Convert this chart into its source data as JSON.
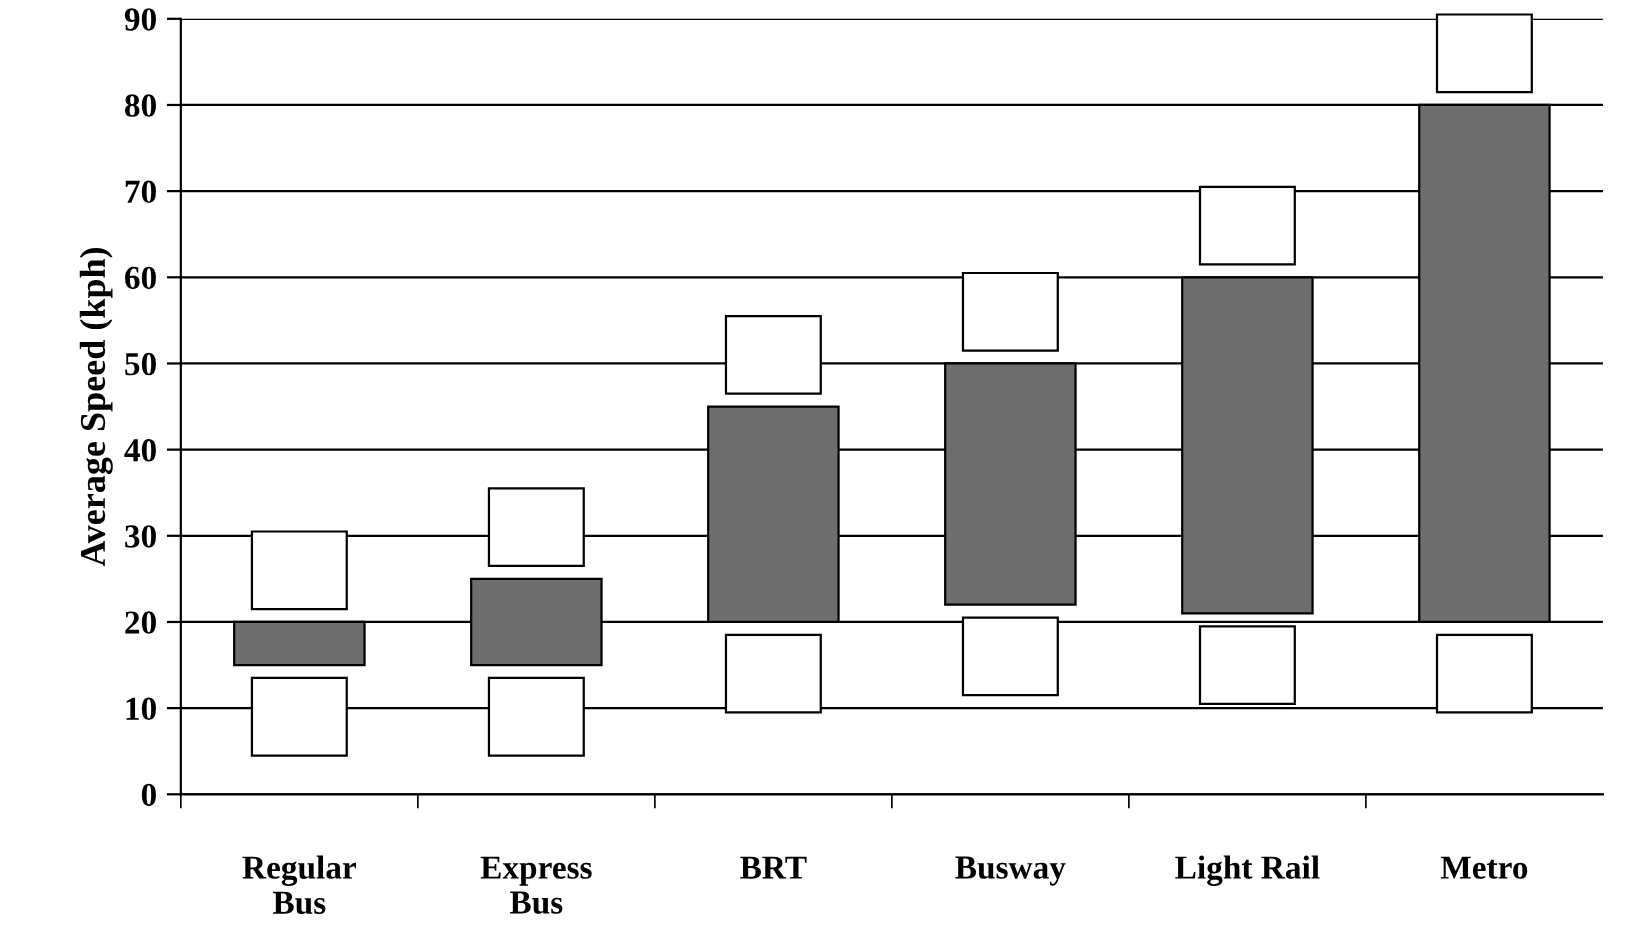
{
  "chart_data": {
    "type": "bar",
    "ylabel": "Average Speed (kph)",
    "categories": [
      "Regular\nBus",
      "Express\nBus",
      "BRT",
      "Busway",
      "Light Rail",
      "Metro"
    ],
    "base": [
      15,
      15,
      20,
      22,
      21,
      20
    ],
    "values": [
      5,
      10,
      25,
      28,
      39,
      60
    ],
    "color": "#6e6e6e",
    "ylim": [
      0,
      90
    ],
    "yticks": [
      0,
      10,
      20,
      30,
      40,
      50,
      60,
      70,
      80,
      90
    ],
    "grid": "y"
  }
}
